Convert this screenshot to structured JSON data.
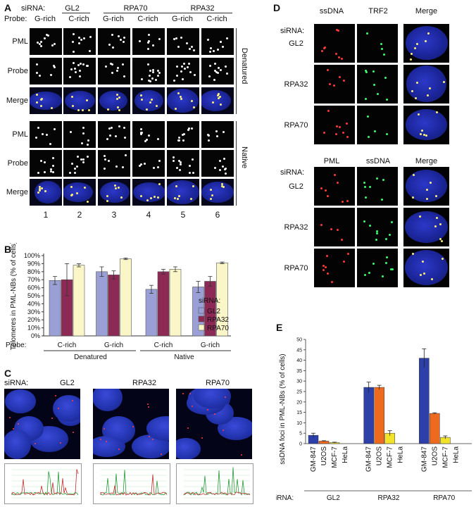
{
  "panels": {
    "A": "A",
    "B": "B",
    "C": "C",
    "D": "D",
    "E": "E"
  },
  "A": {
    "sirna_label": "siRNA:",
    "probe_label": "Probe:",
    "groups": [
      "GL2",
      "RPA70",
      "RPA32"
    ],
    "probes": [
      "G-rich",
      "C-rich",
      "G-rich",
      "C-rich",
      "G-rich",
      "C-rich"
    ],
    "rows": [
      "PML",
      "Probe",
      "Merge",
      "PML",
      "Probe",
      "Merge"
    ],
    "side": [
      "Denatured",
      "Native"
    ],
    "lanes": [
      "1",
      "2",
      "3",
      "4",
      "5",
      "6"
    ]
  },
  "B": {
    "sirna_label": "siRNA:",
    "probe_label": "Probe:",
    "probes": [
      "C-rich",
      "G-rich",
      "C-rich",
      "G-rich"
    ],
    "conditions": [
      "Denatured",
      "Native"
    ],
    "chart_data": {
      "type": "bar",
      "ylabel": "Telomeres in PML-NBs (% of cells)",
      "yticks": [
        "0%",
        "10%",
        "20%",
        "30%",
        "40%",
        "50%",
        "60%",
        "70%",
        "80%",
        "90%",
        "100%"
      ],
      "ylim": [
        0,
        100
      ],
      "categories": [
        "Denatured C-rich",
        "Denatured G-rich",
        "Native C-rich",
        "Native G-rich"
      ],
      "series": [
        {
          "name": "GL2",
          "color": "#9aa0d6",
          "values": [
            69,
            80,
            58,
            61
          ],
          "errors": [
            5,
            6,
            5,
            7
          ]
        },
        {
          "name": "RPA32",
          "color": "#8c2a55",
          "values": [
            70,
            76,
            80,
            68
          ],
          "errors": [
            20,
            5,
            3,
            6
          ]
        },
        {
          "name": "RPA70",
          "color": "#fbf6c8",
          "values": [
            88,
            96,
            83,
            91
          ],
          "errors": [
            2,
            1,
            3,
            1
          ]
        }
      ]
    }
  },
  "C": {
    "sirna_label": "siRNA:",
    "groups": [
      "GL2",
      "RPA32",
      "RPA70"
    ]
  },
  "D": {
    "sirna_label": "siRNA:",
    "top_headers": [
      "ssDNA",
      "TRF2",
      "Merge"
    ],
    "bottom_headers": [
      "PML",
      "ssDNA",
      "Merge"
    ],
    "rows": [
      "GL2",
      "RPA32",
      "RPA70"
    ]
  },
  "E": {
    "sirna_label": "siRNA:",
    "chart_data": {
      "type": "bar",
      "ylabel": "ssDNA foci in PML-NBs (% of cells)",
      "yticks": [
        "0",
        "5",
        "10",
        "15",
        "20",
        "25",
        "30",
        "35",
        "40",
        "45",
        "50"
      ],
      "ylim": [
        0,
        50
      ],
      "groups": [
        "GL2",
        "RPA32",
        "RPA70"
      ],
      "cell_lines": [
        "GM-847",
        "U2OS",
        "MCF-7",
        "HeLa"
      ],
      "colors": [
        "#2d3fa8",
        "#ee6a1e",
        "#f2e22a",
        "#9a9a9a"
      ],
      "series": [
        {
          "group": "GL2",
          "values": [
            4,
            1.2,
            0.5,
            0
          ],
          "errors": [
            1,
            0.2,
            0.2,
            0
          ]
        },
        {
          "group": "RPA32",
          "values": [
            27,
            27,
            5,
            0
          ],
          "errors": [
            2.5,
            1,
            1.2,
            0
          ]
        },
        {
          "group": "RPA70",
          "values": [
            41,
            14.5,
            3,
            0
          ],
          "errors": [
            4.5,
            0.3,
            0.7,
            0
          ]
        }
      ]
    }
  }
}
